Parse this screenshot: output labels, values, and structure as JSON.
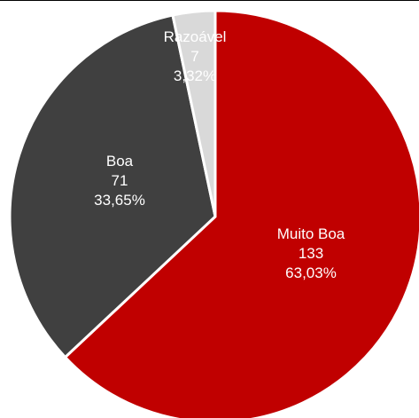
{
  "chart_data": {
    "type": "pie",
    "slices": [
      {
        "name": "Muito Boa",
        "count": "133",
        "percent_label": "63,03%",
        "value": 63.03,
        "color": "#c00000"
      },
      {
        "name": "Boa",
        "count": "71",
        "percent_label": "33,65%",
        "value": 33.65,
        "color": "#404040"
      },
      {
        "name": "Razoável",
        "count": "7",
        "percent_label": "3,32%",
        "value": 3.32,
        "color": "#d9d9d9"
      }
    ],
    "start_angle_deg": 0,
    "direction": "clockwise",
    "slice_border_color": "#ffffff"
  }
}
